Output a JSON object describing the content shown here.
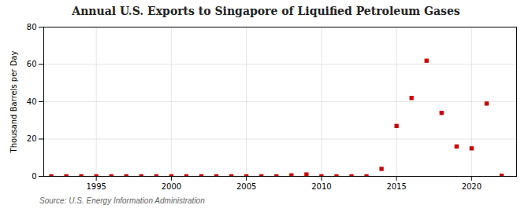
{
  "chart_data": {
    "type": "scatter",
    "title": "Annual U.S. Exports to Singapore of Liquified Petroleum Gases",
    "ylabel": "Thousand Barrels per Day",
    "source": "Source: U.S. Energy Information Administration",
    "x": [
      1992,
      1993,
      1994,
      1995,
      1996,
      1997,
      1998,
      1999,
      2000,
      2001,
      2002,
      2003,
      2004,
      2005,
      2006,
      2007,
      2008,
      2009,
      2010,
      2011,
      2012,
      2013,
      2014,
      2015,
      2016,
      2017,
      2018,
      2019,
      2020,
      2021,
      2022
    ],
    "values": [
      0.0,
      0.0,
      0.0,
      0.0,
      0.0,
      0.0,
      0.0,
      0.0,
      0.0,
      0.0,
      0.0,
      0.0,
      0.0,
      0.0,
      0.0,
      0.0,
      0.5,
      1.0,
      0.0,
      0.0,
      0.0,
      0.0,
      4.0,
      27.0,
      42.0,
      62.0,
      34.0,
      16.0,
      15.0,
      39.0,
      0.3
    ],
    "color": "#cc0000",
    "marker": "square",
    "xlim": [
      1991.5,
      2023
    ],
    "xticks": [
      1995,
      2000,
      2005,
      2010,
      2015,
      2020
    ],
    "ylim": [
      0,
      80
    ],
    "yticks": [
      0,
      20,
      40,
      60,
      80
    ],
    "grid": true
  }
}
